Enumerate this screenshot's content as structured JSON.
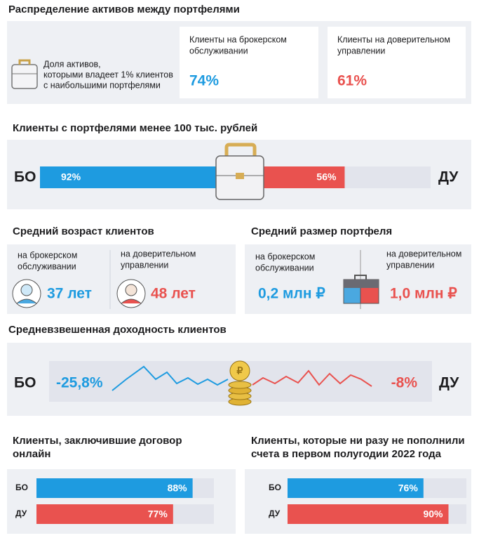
{
  "colors": {
    "bo": "#1e9be0",
    "du": "#e9524f"
  },
  "section1": {
    "title": "Распределение активов между портфелями",
    "note": [
      "Доля активов,",
      "которыми владеет 1% клиентов",
      "с наибольшими портфелями"
    ],
    "cards": [
      {
        "label": [
          "Клиенты на брокерском",
          "обслуживании"
        ],
        "value": "74%"
      },
      {
        "label": [
          "Клиенты на доверительном",
          "управлении"
        ],
        "value": "61%"
      }
    ]
  },
  "section2": {
    "title": "Клиенты с портфелями менее 100 тыс. рублей",
    "left": "БО",
    "right": "ДУ",
    "bars": [
      {
        "value": 92,
        "label": "92%"
      },
      {
        "value": 56,
        "label": "56%"
      }
    ]
  },
  "age": {
    "title": "Средний возраст клиентов",
    "items": [
      {
        "label": [
          "на брокерском",
          "обслуживании"
        ],
        "value": "37 лет"
      },
      {
        "label": [
          "на доверительном",
          "управлении"
        ],
        "value": "48 лет"
      }
    ]
  },
  "portfolio": {
    "title": "Средний размер портфеля",
    "items": [
      {
        "label": [
          "на брокерском",
          "обслуживании"
        ],
        "value": "0,2 млн ₽"
      },
      {
        "label": [
          "на доверительном",
          "управлении"
        ],
        "value": "1,0 млн ₽"
      }
    ]
  },
  "yield": {
    "title": "Средневзвешенная доходность клиентов",
    "left": "БО",
    "right": "ДУ",
    "values": [
      "-25,8%",
      "-8%"
    ]
  },
  "online": {
    "title": [
      "Клиенты, заключившие договор",
      "онлайн"
    ],
    "rows": [
      {
        "name": "БО",
        "value": 88,
        "label": "88%"
      },
      {
        "name": "ДУ",
        "value": 77,
        "label": "77%"
      }
    ]
  },
  "topup": {
    "title": [
      "Клиенты, которые ни разу не пополнили",
      "счета в первом полугодии 2022 года"
    ],
    "rows": [
      {
        "name": "БО",
        "value": 76,
        "label": "76%"
      },
      {
        "name": "ДУ",
        "value": 90,
        "label": "90%"
      }
    ]
  }
}
